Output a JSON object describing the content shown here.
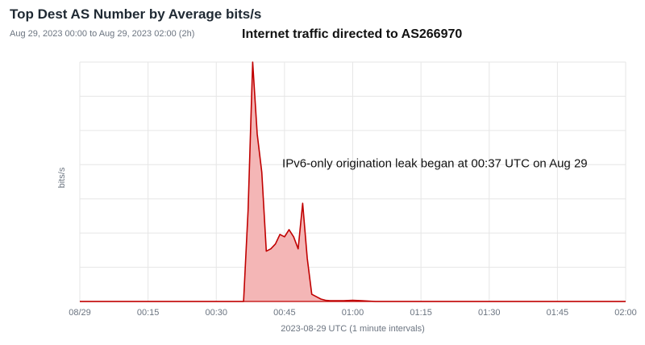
{
  "header": {
    "title": "Top Dest AS Number by Average bits/s",
    "subtitle": "Aug 29, 2023 00:00 to Aug 29, 2023 02:00 (2h)",
    "chart_heading": "Internet traffic directed to AS266970"
  },
  "colors": {
    "line": "#c00000",
    "fill": "#f4b6b6",
    "grid": "#e6e6e6"
  },
  "chart_data": {
    "type": "area",
    "title": "Internet traffic directed to AS266970",
    "xlabel": "2023-08-29 UTC (1 minute intervals)",
    "ylabel": "bits/s",
    "xlim": [
      0,
      120
    ],
    "ylim": [
      0,
      100
    ],
    "x_ticks": [
      {
        "x": 0,
        "label": "08/29"
      },
      {
        "x": 15,
        "label": "00:15"
      },
      {
        "x": 30,
        "label": "00:30"
      },
      {
        "x": 45,
        "label": "00:45"
      },
      {
        "x": 60,
        "label": "01:00"
      },
      {
        "x": 75,
        "label": "01:15"
      },
      {
        "x": 90,
        "label": "01:30"
      },
      {
        "x": 105,
        "label": "01:45"
      },
      {
        "x": 120,
        "label": "02:00"
      }
    ],
    "y_grid_count": 7,
    "series": [
      {
        "points": [
          [
            0,
            0
          ],
          [
            36,
            0
          ],
          [
            37,
            38
          ],
          [
            38,
            100
          ],
          [
            39,
            70
          ],
          [
            40,
            54
          ],
          [
            41,
            21
          ],
          [
            42,
            22
          ],
          [
            43,
            24
          ],
          [
            44,
            28
          ],
          [
            45,
            27
          ],
          [
            46,
            30
          ],
          [
            47,
            27
          ],
          [
            48,
            22
          ],
          [
            49,
            41
          ],
          [
            50,
            18
          ],
          [
            51,
            3
          ],
          [
            52,
            2
          ],
          [
            53,
            1
          ],
          [
            54,
            0.5
          ],
          [
            55,
            0.3
          ],
          [
            56,
            0.3
          ],
          [
            58,
            0.3
          ],
          [
            60,
            0.5
          ],
          [
            62,
            0.3
          ],
          [
            65,
            0
          ],
          [
            120,
            0
          ]
        ]
      }
    ],
    "annotations": [
      {
        "text": "IPv6-only origination leak began at 00:37 UTC on Aug 29",
        "x": 44.5,
        "y": 56
      }
    ]
  }
}
